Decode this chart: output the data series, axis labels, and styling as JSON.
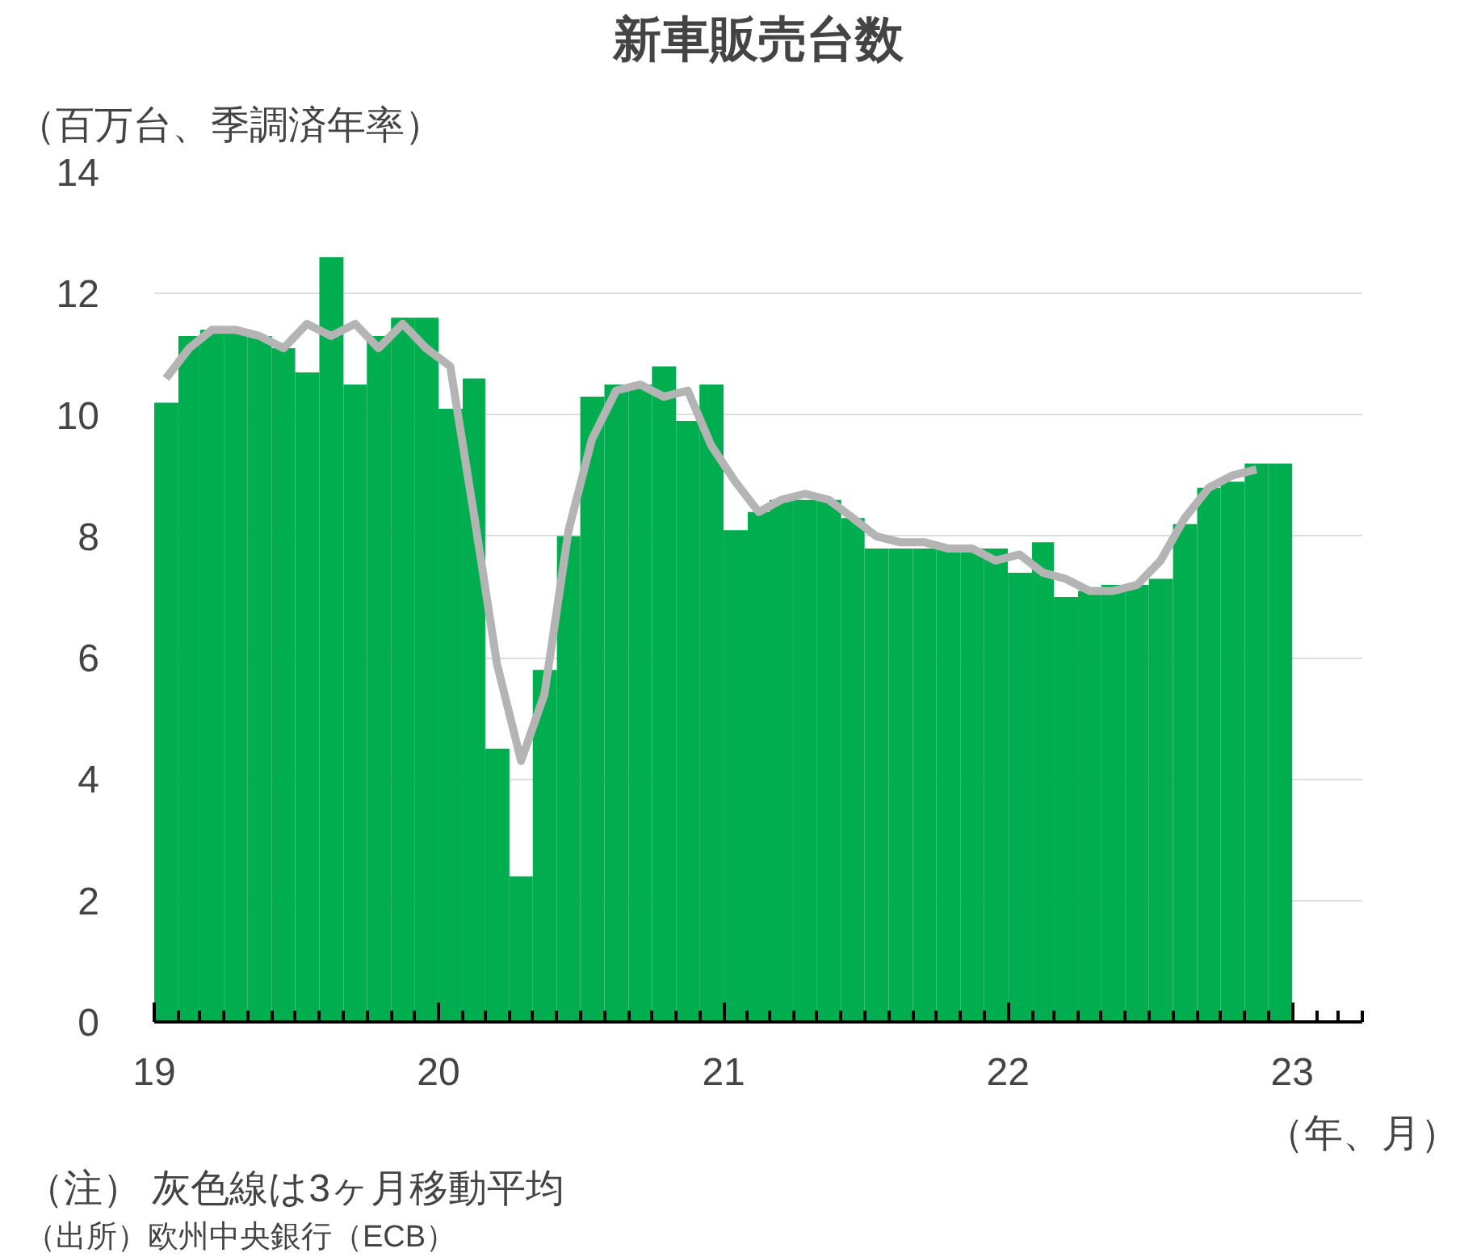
{
  "chart_data": {
    "type": "bar",
    "title": "新車販売台数",
    "ylabel": "（百万台、季調済年率）",
    "xlabel": "（年、月）",
    "annotations": [
      "（注） 灰色線は3ヶ月移動平均",
      "（出所）欧州中央銀行（ECB）"
    ],
    "x": [
      "2019-01-16",
      "2019-02-15",
      "2019-03-16",
      "2019-04-16",
      "2019-05-16",
      "2019-06-16",
      "2019-07-16",
      "2019-08-16",
      "2019-09-16",
      "2019-10-16",
      "2019-11-16",
      "2019-12-16",
      "2020-01-16",
      "2020-02-15",
      "2020-03-16",
      "2020-04-16",
      "2020-05-16",
      "2020-06-16",
      "2020-07-16",
      "2020-08-16",
      "2020-09-16",
      "2020-10-16",
      "2020-11-16",
      "2020-12-16",
      "2021-01-16",
      "2021-02-15",
      "2021-03-16",
      "2021-04-16",
      "2021-05-16",
      "2021-06-16",
      "2021-07-16",
      "2021-08-16",
      "2021-09-16",
      "2021-10-16",
      "2021-11-16",
      "2021-12-16",
      "2022-01-16",
      "2022-02-15",
      "2022-03-16",
      "2022-04-16",
      "2022-05-16",
      "2022-06-16",
      "2022-07-16",
      "2022-08-16",
      "2022-09-16",
      "2022-10-16",
      "2022-11-16",
      "2022-12-16"
    ],
    "series": [
      {
        "color": "#00ad4f",
        "values": [
          10.2,
          11.3,
          11.4,
          11.4,
          11.3,
          11.1,
          10.7,
          12.6,
          10.5,
          11.3,
          11.6,
          11.6,
          10.1,
          10.6,
          4.5,
          2.4,
          5.8,
          8.0,
          10.3,
          10.5,
          10.5,
          10.8,
          9.9,
          10.5,
          8.1,
          8.4,
          8.6,
          8.6,
          8.6,
          8.3,
          7.8,
          7.8,
          7.8,
          7.8,
          7.8,
          7.8,
          7.4,
          7.9,
          7.0,
          7.1,
          7.2,
          7.2,
          7.3,
          8.2,
          8.8,
          8.9,
          9.2,
          9.2
        ]
      },
      {
        "type": "line",
        "color": "#b4b4b4",
        "values": [
          10.6,
          11.1,
          11.4,
          11.4,
          11.3,
          11.1,
          11.5,
          11.3,
          11.5,
          11.1,
          11.5,
          11.1,
          10.8,
          8.4,
          5.9,
          4.3,
          5.4,
          8.1,
          9.6,
          10.4,
          10.5,
          10.3,
          10.4,
          9.5,
          8.9,
          8.4,
          8.6,
          8.7,
          8.6,
          8.3,
          8.0,
          7.9,
          7.9,
          7.8,
          7.8,
          7.6,
          7.7,
          7.4,
          7.3,
          7.1,
          7.1,
          7.2,
          7.6,
          8.3,
          8.8,
          9.0,
          9.1,
          null
        ]
      }
    ],
    "xlim": [
      "2019-01",
      "2023-04"
    ],
    "xticks": [
      {
        "value": "2019-01",
        "label": "19"
      },
      {
        "value": "2020-01",
        "label": "20"
      },
      {
        "value": "2021-01",
        "label": "21"
      },
      {
        "value": "2022-01",
        "label": "22"
      },
      {
        "value": "2023-01",
        "label": "23"
      },
      {
        "value": "2019-02",
        "label": null
      },
      {
        "value": "2019-03",
        "label": null
      },
      {
        "value": "2019-04",
        "label": null
      },
      {
        "value": "2019-05",
        "label": null
      },
      {
        "value": "2019-06",
        "label": null
      },
      {
        "value": "2019-07",
        "label": null
      },
      {
        "value": "2019-08",
        "label": null
      },
      {
        "value": "2019-09",
        "label": null
      },
      {
        "value": "2019-10",
        "label": null
      },
      {
        "value": "2019-11",
        "label": null
      },
      {
        "value": "2019-12",
        "label": null
      },
      {
        "value": "2020-02",
        "label": null
      },
      {
        "value": "2020-03",
        "label": null
      },
      {
        "value": "2020-04",
        "label": null
      },
      {
        "value": "2020-05",
        "label": null
      },
      {
        "value": "2020-06",
        "label": null
      },
      {
        "value": "2020-07",
        "label": null
      },
      {
        "value": "2020-08",
        "label": null
      },
      {
        "value": "2020-09",
        "label": null
      },
      {
        "value": "2020-10",
        "label": null
      },
      {
        "value": "2020-11",
        "label": null
      },
      {
        "value": "2020-12",
        "label": null
      },
      {
        "value": "2021-02",
        "label": null
      },
      {
        "value": "2021-03",
        "label": null
      },
      {
        "value": "2021-04",
        "label": null
      },
      {
        "value": "2021-05",
        "label": null
      },
      {
        "value": "2021-06",
        "label": null
      },
      {
        "value": "2021-07",
        "label": null
      },
      {
        "value": "2021-08",
        "label": null
      },
      {
        "value": "2021-09",
        "label": null
      },
      {
        "value": "2021-10",
        "label": null
      },
      {
        "value": "2021-11",
        "label": null
      },
      {
        "value": "2021-12",
        "label": null
      },
      {
        "value": "2022-02",
        "label": null
      },
      {
        "value": "2022-03",
        "label": null
      },
      {
        "value": "2022-04",
        "label": null
      },
      {
        "value": "2022-05",
        "label": null
      },
      {
        "value": "2022-06",
        "label": null
      },
      {
        "value": "2022-07",
        "label": null
      },
      {
        "value": "2022-08",
        "label": null
      },
      {
        "value": "2022-09",
        "label": null
      },
      {
        "value": "2022-10",
        "label": null
      },
      {
        "value": "2022-11",
        "label": null
      },
      {
        "value": "2022-12",
        "label": null
      },
      {
        "value": "2023-02",
        "label": null
      },
      {
        "value": "2023-03",
        "label": null
      },
      {
        "value": "2023-04",
        "label": null
      }
    ],
    "ylim": [
      0,
      14
    ],
    "yticks": [
      0,
      2,
      4,
      6,
      8,
      10,
      12,
      14
    ],
    "grid": "y"
  }
}
